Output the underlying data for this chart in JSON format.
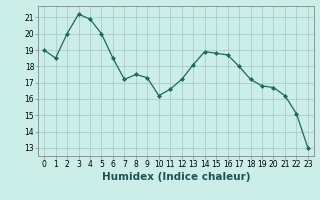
{
  "x": [
    0,
    1,
    2,
    3,
    4,
    5,
    6,
    7,
    8,
    9,
    10,
    11,
    12,
    13,
    14,
    15,
    16,
    17,
    18,
    19,
    20,
    21,
    22,
    23
  ],
  "y": [
    19.0,
    18.5,
    20.0,
    21.2,
    20.9,
    20.0,
    18.5,
    17.2,
    17.5,
    17.3,
    16.2,
    16.6,
    17.2,
    18.1,
    18.9,
    18.8,
    18.7,
    18.0,
    17.2,
    16.8,
    16.7,
    16.2,
    15.1,
    13.0
  ],
  "line_color": "#1a6b5a",
  "marker": "D",
  "marker_size": 2.0,
  "bg_color": "#cceee8",
  "grid_color": "#aacccc",
  "xlabel": "Humidex (Indice chaleur)",
  "ylim": [
    12.5,
    21.7
  ],
  "xlim": [
    -0.5,
    23.5
  ],
  "yticks": [
    13,
    14,
    15,
    16,
    17,
    18,
    19,
    20,
    21
  ],
  "xticks": [
    0,
    1,
    2,
    3,
    4,
    5,
    6,
    7,
    8,
    9,
    10,
    11,
    12,
    13,
    14,
    15,
    16,
    17,
    18,
    19,
    20,
    21,
    22,
    23
  ],
  "tick_fontsize": 5.5,
  "xlabel_fontsize": 7.5,
  "linewidth": 0.9
}
